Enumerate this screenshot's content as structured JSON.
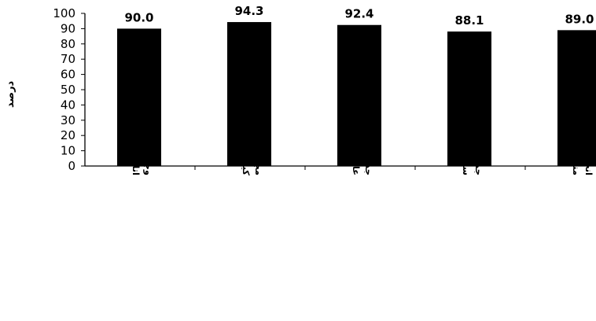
{
  "chart_data": {
    "type": "bar",
    "ylabel": "درصد",
    "ylim": [
      0,
      100
    ],
    "yticks": [
      0,
      10,
      20,
      30,
      40,
      50,
      60,
      70,
      80,
      90,
      100
    ],
    "categories": [
      "وجود زباله دان در کلیه اتاق ها و سالن انتظار",
      "مجهز بودن زباله دان به کیسه زباله",
      "جدا سازی زباله های عفونی و عادی",
      "جمع آوری تیغ های جراحی و سر سوزن ها در سفتی باکس",
      "انجام حمل زباله طبق برنامه منظم"
    ],
    "values": [
      90.0,
      94.3,
      92.4,
      88.1,
      89.0
    ],
    "data_labels": [
      "90.0",
      "94.3",
      "92.4",
      "88.1",
      "89.0"
    ],
    "bar_color": "#000000",
    "grid": false,
    "legend": "none"
  }
}
